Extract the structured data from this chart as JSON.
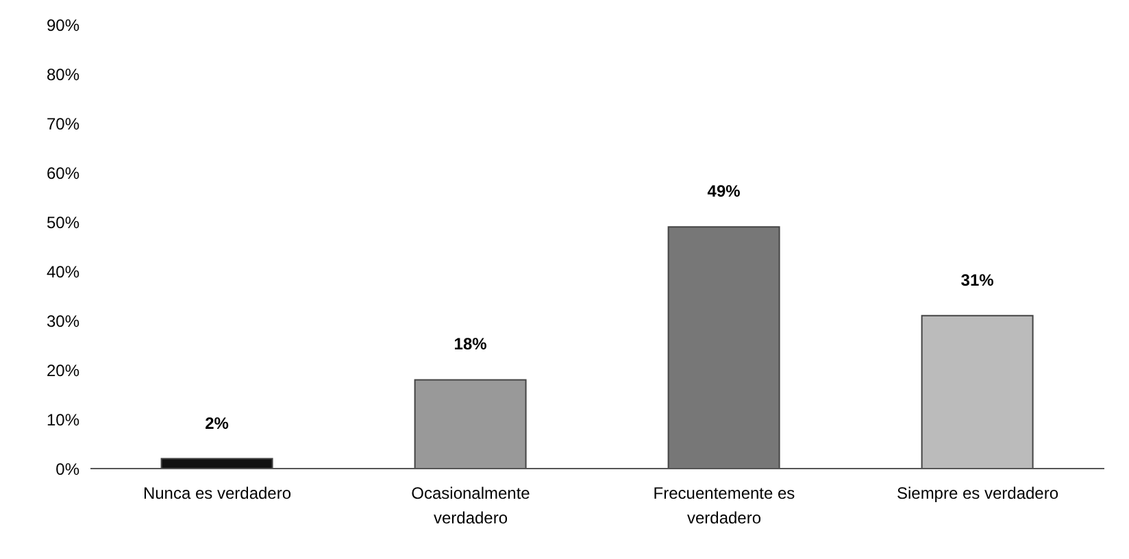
{
  "chart_data": {
    "type": "bar",
    "categories": [
      "Nunca es verdadero",
      "Ocasionalmente verdadero",
      "Frecuentemente es verdadero",
      "Siempre es verdadero"
    ],
    "values": [
      2,
      18,
      49,
      31
    ],
    "colors": [
      "#111111",
      "#999999",
      "#777777",
      "#bbbbbb"
    ],
    "ylim": [
      0,
      90
    ],
    "yticks": [
      {
        "value": 0,
        "label": "0%"
      },
      {
        "value": 10,
        "label": "10%"
      },
      {
        "value": 20,
        "label": "20%"
      },
      {
        "value": 30,
        "label": "30%"
      },
      {
        "value": 40,
        "label": "40%"
      },
      {
        "value": 50,
        "label": "50%"
      },
      {
        "value": 60,
        "label": "60%"
      },
      {
        "value": 70,
        "label": "70%"
      },
      {
        "value": 80,
        "label": "80%"
      },
      {
        "value": 90,
        "label": "90%"
      }
    ],
    "value_labels": [
      "2%",
      "18%",
      "49%",
      "31%"
    ],
    "grid": false,
    "legend": false
  }
}
